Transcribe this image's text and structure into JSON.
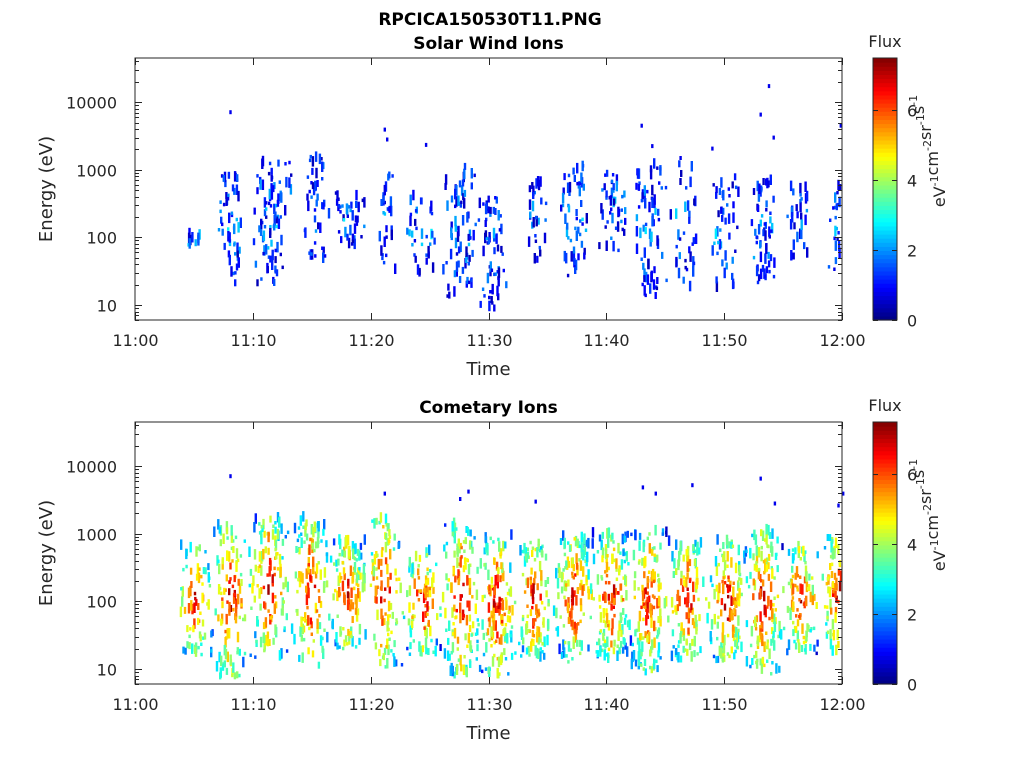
{
  "figure": {
    "title": "RPCICA150530T11.PNG"
  },
  "colormap": [
    "#00007f",
    "#0000ff",
    "#007fff",
    "#00ffff",
    "#7fff7f",
    "#ffff00",
    "#ff7f00",
    "#ff0000",
    "#7f0000"
  ],
  "chart_data": [
    {
      "type": "heatmap",
      "title": "Solar Wind Ions",
      "xlabel": "Time",
      "ylabel": "Energy (eV)",
      "x_ticks": [
        "11:00",
        "11:10",
        "11:20",
        "11:30",
        "11:40",
        "11:50",
        "12:00"
      ],
      "x_range_minutes": [
        0,
        60
      ],
      "y_scale": "log",
      "y_ticks": [
        "10",
        "100",
        "1000",
        "10000"
      ],
      "y_range": [
        6,
        45000
      ],
      "colorbar": {
        "title": "Flux",
        "unit_label": "eV-1cm-2sr-1s-1",
        "ticks": [
          "0",
          "2",
          "4",
          "6"
        ],
        "range": [
          0,
          7.5
        ]
      },
      "intensity_scale": 0.4,
      "clusters": [
        {
          "t": 4.6,
          "w": 0.4,
          "lo": 45,
          "hi": 110,
          "n": 6
        },
        {
          "t": 5.3,
          "w": 0.3,
          "lo": 60,
          "hi": 120,
          "n": 4
        },
        {
          "t": 8.0,
          "w": 1.4,
          "lo": 18,
          "hi": 800,
          "n": 55
        },
        {
          "t": 11.2,
          "w": 1.6,
          "lo": 18,
          "hi": 1200,
          "n": 80
        },
        {
          "t": 13.0,
          "w": 0.5,
          "lo": 300,
          "hi": 1400,
          "n": 6
        },
        {
          "t": 15.2,
          "w": 1.2,
          "lo": 40,
          "hi": 1600,
          "n": 45
        },
        {
          "t": 18.0,
          "w": 1.6,
          "lo": 60,
          "hi": 450,
          "n": 40
        },
        {
          "t": 21.2,
          "w": 0.8,
          "lo": 25,
          "hi": 1000,
          "n": 28
        },
        {
          "t": 24.2,
          "w": 1.6,
          "lo": 25,
          "hi": 420,
          "n": 35
        },
        {
          "t": 27.6,
          "w": 1.6,
          "lo": 12,
          "hi": 1100,
          "n": 75
        },
        {
          "t": 30.3,
          "w": 1.2,
          "lo": 8,
          "hi": 380,
          "n": 60
        },
        {
          "t": 34.0,
          "w": 1.0,
          "lo": 40,
          "hi": 600,
          "n": 30
        },
        {
          "t": 37.3,
          "w": 1.4,
          "lo": 25,
          "hi": 1100,
          "n": 55
        },
        {
          "t": 40.5,
          "w": 1.4,
          "lo": 60,
          "hi": 800,
          "n": 45
        },
        {
          "t": 43.5,
          "w": 1.6,
          "lo": 12,
          "hi": 1300,
          "n": 70
        },
        {
          "t": 46.5,
          "w": 1.4,
          "lo": 15,
          "hi": 1600,
          "n": 35
        },
        {
          "t": 50.0,
          "w": 1.4,
          "lo": 15,
          "hi": 700,
          "n": 45
        },
        {
          "t": 53.2,
          "w": 1.2,
          "lo": 18,
          "hi": 600,
          "n": 60
        },
        {
          "t": 56.3,
          "w": 1.2,
          "lo": 40,
          "hi": 500,
          "n": 30
        },
        {
          "t": 59.7,
          "w": 1.0,
          "lo": 30,
          "hi": 500,
          "n": 30
        }
      ],
      "isolated": [
        [
          8.0,
          7600
        ],
        [
          21.1,
          4200
        ],
        [
          21.3,
          3000
        ],
        [
          24.6,
          2500
        ],
        [
          42.9,
          4800
        ],
        [
          43.8,
          2400
        ],
        [
          48.9,
          2200
        ],
        [
          53.0,
          7000
        ],
        [
          53.7,
          18500
        ],
        [
          54.1,
          3200
        ],
        [
          59.8,
          4800
        ],
        [
          46.2,
          1600
        ]
      ]
    },
    {
      "type": "heatmap",
      "title": "Cometary Ions",
      "xlabel": "Time",
      "ylabel": "Energy (eV)",
      "x_ticks": [
        "11:00",
        "11:10",
        "11:20",
        "11:30",
        "11:40",
        "11:50",
        "12:00"
      ],
      "x_range_minutes": [
        0,
        60
      ],
      "y_scale": "log",
      "y_ticks": [
        "10",
        "100",
        "1000",
        "10000"
      ],
      "y_range": [
        6,
        45000
      ],
      "colorbar": {
        "title": "Flux",
        "unit_label": "eV-1cm-2sr-1s-1",
        "ticks": [
          "0",
          "2",
          "4",
          "6"
        ],
        "range": [
          0,
          7.5
        ]
      },
      "intensity_scale": 1.0,
      "clusters": [
        {
          "t": 5.0,
          "w": 1.6,
          "lo": 15,
          "hi": 600,
          "n": 70
        },
        {
          "t": 8.0,
          "w": 1.8,
          "lo": 7,
          "hi": 1200,
          "n": 110
        },
        {
          "t": 11.3,
          "w": 1.8,
          "lo": 12,
          "hi": 1500,
          "n": 120
        },
        {
          "t": 14.8,
          "w": 1.8,
          "lo": 10,
          "hi": 1600,
          "n": 120
        },
        {
          "t": 17.9,
          "w": 1.8,
          "lo": 18,
          "hi": 700,
          "n": 110
        },
        {
          "t": 21.0,
          "w": 1.8,
          "lo": 10,
          "hi": 1500,
          "n": 100
        },
        {
          "t": 24.3,
          "w": 1.8,
          "lo": 15,
          "hi": 500,
          "n": 90
        },
        {
          "t": 27.6,
          "w": 1.8,
          "lo": 7,
          "hi": 1300,
          "n": 130
        },
        {
          "t": 30.6,
          "w": 1.8,
          "lo": 7,
          "hi": 900,
          "n": 140
        },
        {
          "t": 33.8,
          "w": 1.6,
          "lo": 12,
          "hi": 700,
          "n": 110
        },
        {
          "t": 37.2,
          "w": 1.8,
          "lo": 12,
          "hi": 800,
          "n": 130
        },
        {
          "t": 40.3,
          "w": 1.8,
          "lo": 12,
          "hi": 900,
          "n": 140
        },
        {
          "t": 43.5,
          "w": 1.8,
          "lo": 8,
          "hi": 1000,
          "n": 140
        },
        {
          "t": 46.8,
          "w": 1.8,
          "lo": 12,
          "hi": 700,
          "n": 110
        },
        {
          "t": 50.2,
          "w": 1.8,
          "lo": 10,
          "hi": 700,
          "n": 120
        },
        {
          "t": 53.2,
          "w": 1.8,
          "lo": 8,
          "hi": 1000,
          "n": 140
        },
        {
          "t": 56.4,
          "w": 1.6,
          "lo": 15,
          "hi": 600,
          "n": 100
        },
        {
          "t": 59.6,
          "w": 1.6,
          "lo": 15,
          "hi": 900,
          "n": 100
        }
      ],
      "isolated": [
        [
          8.0,
          7600
        ],
        [
          21.1,
          4200
        ],
        [
          27.5,
          3500
        ],
        [
          28.2,
          4500
        ],
        [
          33.9,
          3200
        ],
        [
          43.0,
          5200
        ],
        [
          44.1,
          4200
        ],
        [
          47.2,
          5600
        ],
        [
          53.0,
          7000
        ],
        [
          54.2,
          3000
        ],
        [
          59.6,
          2800
        ],
        [
          60.0,
          4200
        ]
      ]
    }
  ]
}
